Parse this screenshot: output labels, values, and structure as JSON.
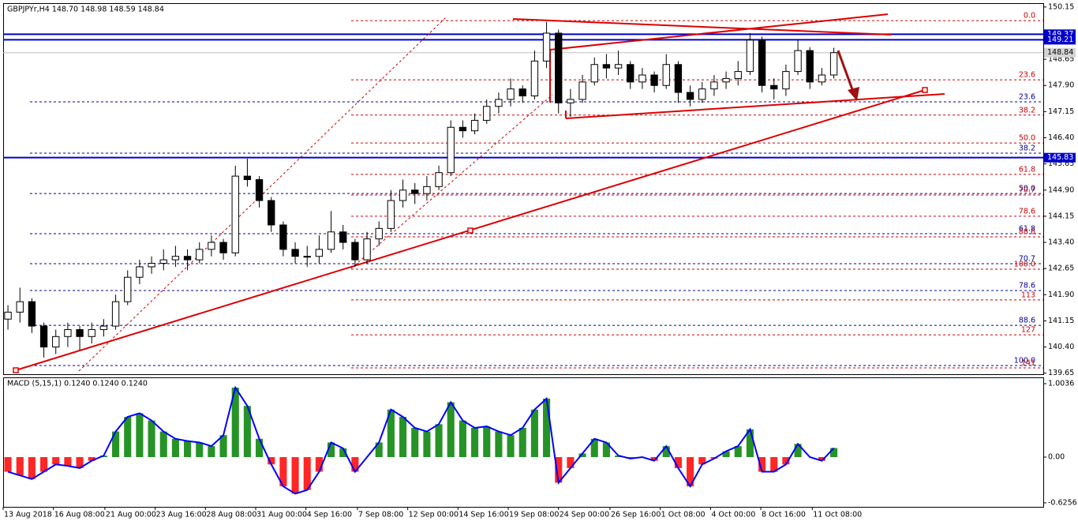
{
  "chart_data": {
    "type": "candlestick",
    "title": "GBPJPYr,H4  148.70 148.98 148.59 148.84",
    "up_color": "#ffffff",
    "down_color": "#000000",
    "candles": [
      [
        141.2,
        141.6,
        140.9,
        141.4
      ],
      [
        141.4,
        142.1,
        141.1,
        141.7
      ],
      [
        141.7,
        141.8,
        140.8,
        141.0
      ],
      [
        141.0,
        141.1,
        140.1,
        140.4
      ],
      [
        140.4,
        140.9,
        140.2,
        140.7
      ],
      [
        140.7,
        141.1,
        140.4,
        140.9
      ],
      [
        140.9,
        141.0,
        140.3,
        140.7
      ],
      [
        140.7,
        141.1,
        140.5,
        140.9
      ],
      [
        140.9,
        141.2,
        140.7,
        141.0
      ],
      [
        141.0,
        141.9,
        140.9,
        141.7
      ],
      [
        141.7,
        142.6,
        141.6,
        142.4
      ],
      [
        142.4,
        142.9,
        142.2,
        142.7
      ],
      [
        142.7,
        143.0,
        142.5,
        142.8
      ],
      [
        142.8,
        143.2,
        142.6,
        142.9
      ],
      [
        142.9,
        143.3,
        142.7,
        143.0
      ],
      [
        143.0,
        143.2,
        142.6,
        142.9
      ],
      [
        142.9,
        143.4,
        142.8,
        143.2
      ],
      [
        143.2,
        143.6,
        143.0,
        143.4
      ],
      [
        143.4,
        143.5,
        142.9,
        143.1
      ],
      [
        143.1,
        145.6,
        143.0,
        145.3
      ],
      [
        145.3,
        145.8,
        145.0,
        145.2
      ],
      [
        145.2,
        145.3,
        144.4,
        144.6
      ],
      [
        144.6,
        144.7,
        143.7,
        143.9
      ],
      [
        143.9,
        144.0,
        143.0,
        143.2
      ],
      [
        143.2,
        143.4,
        142.8,
        143.0
      ],
      [
        143.0,
        143.3,
        142.7,
        143.0
      ],
      [
        143.0,
        143.6,
        142.8,
        143.2
      ],
      [
        143.2,
        144.3,
        143.1,
        143.7
      ],
      [
        143.7,
        143.9,
        143.2,
        143.4
      ],
      [
        143.4,
        143.5,
        142.7,
        142.9
      ],
      [
        142.9,
        143.7,
        142.8,
        143.5
      ],
      [
        143.5,
        144.0,
        143.3,
        143.8
      ],
      [
        143.8,
        144.9,
        143.7,
        144.6
      ],
      [
        144.6,
        145.2,
        144.4,
        144.9
      ],
      [
        144.9,
        145.1,
        144.5,
        144.8
      ],
      [
        144.8,
        145.3,
        144.6,
        145.0
      ],
      [
        145.0,
        145.6,
        144.9,
        145.4
      ],
      [
        145.4,
        146.9,
        145.3,
        146.7
      ],
      [
        146.7,
        146.9,
        146.4,
        146.6
      ],
      [
        146.6,
        147.1,
        146.5,
        146.9
      ],
      [
        146.9,
        147.5,
        146.8,
        147.3
      ],
      [
        147.3,
        147.7,
        147.1,
        147.5
      ],
      [
        147.5,
        148.1,
        147.3,
        147.8
      ],
      [
        147.8,
        147.9,
        147.4,
        147.6
      ],
      [
        147.6,
        148.9,
        147.5,
        148.6
      ],
      [
        148.6,
        149.72,
        148.4,
        149.4
      ],
      [
        149.4,
        149.5,
        147.1,
        147.4
      ],
      [
        147.4,
        147.8,
        147.0,
        147.5
      ],
      [
        147.5,
        148.2,
        147.4,
        148.0
      ],
      [
        148.0,
        148.7,
        147.9,
        148.5
      ],
      [
        148.5,
        148.8,
        148.1,
        148.4
      ],
      [
        148.4,
        148.9,
        148.2,
        148.5
      ],
      [
        148.5,
        148.6,
        147.8,
        148.0
      ],
      [
        148.0,
        148.4,
        147.8,
        148.2
      ],
      [
        148.2,
        148.3,
        147.7,
        147.9
      ],
      [
        147.9,
        148.8,
        147.8,
        148.5
      ],
      [
        148.5,
        148.6,
        147.4,
        147.7
      ],
      [
        147.7,
        147.9,
        147.3,
        147.5
      ],
      [
        147.5,
        148.0,
        147.4,
        147.8
      ],
      [
        147.8,
        148.2,
        147.6,
        148.0
      ],
      [
        148.0,
        148.3,
        147.8,
        148.1
      ],
      [
        148.1,
        148.6,
        147.9,
        148.3
      ],
      [
        148.3,
        149.4,
        148.2,
        149.2
      ],
      [
        149.2,
        149.3,
        147.7,
        147.9
      ],
      [
        147.9,
        148.1,
        147.5,
        147.8
      ],
      [
        147.8,
        148.5,
        147.6,
        148.3
      ],
      [
        148.3,
        149.2,
        148.2,
        148.9
      ],
      [
        148.9,
        149.0,
        147.8,
        148.0
      ],
      [
        148.0,
        148.4,
        147.9,
        148.2
      ],
      [
        148.2,
        148.98,
        148.1,
        148.84
      ]
    ],
    "xlim": [
      -0.4,
      86.5
    ],
    "xticks": [
      {
        "value": -0.4,
        "label": "13 Aug 2018"
      },
      {
        "value": 3.8,
        "label": "16 Aug 08:00"
      },
      {
        "value": 8.1,
        "label": "21 Aug 00:00"
      },
      {
        "value": 12.3,
        "label": "23 Aug 16:00"
      },
      {
        "value": 16.5,
        "label": "28 Aug 08:00"
      },
      {
        "value": 20.7,
        "label": "31 Aug 00:00"
      },
      {
        "value": 24.9,
        "label": "4 Sep 16:00"
      },
      {
        "value": 29.2,
        "label": "7 Sep 08:00"
      },
      {
        "value": 33.4,
        "label": "12 Sep 00:00"
      },
      {
        "value": 37.6,
        "label": "14 Sep 16:00"
      },
      {
        "value": 41.8,
        "label": "19 Sep 08:00"
      },
      {
        "value": 46.0,
        "label": "24 Sep 00:00"
      },
      {
        "value": 50.3,
        "label": "26 Sep 16:00"
      },
      {
        "value": 54.5,
        "label": "1 Oct 08:00"
      },
      {
        "value": 58.7,
        "label": "4 Oct 00:00"
      },
      {
        "value": 62.9,
        "label": "8 Oct 16:00"
      },
      {
        "value": 67.2,
        "label": "11 Oct 08:00"
      }
    ],
    "ylim": [
      139.62,
      150.26
    ],
    "yticks": [
      150.15,
      {
        "value": 149.4,
        "label": "149.40"
      },
      148.65,
      {
        "value": 147.9,
        "label": "147.90"
      },
      147.15,
      {
        "value": 146.4,
        "label": "146.40"
      },
      145.65,
      {
        "value": 144.9,
        "label": "144.90"
      },
      144.15,
      {
        "value": 143.4,
        "label": "143.40"
      },
      142.65,
      {
        "value": 141.9,
        "label": "141.90"
      },
      141.15,
      {
        "value": 140.4,
        "label": "140.40"
      },
      139.65
    ],
    "hlines": [
      {
        "price": 149.37,
        "color": "#0000cc",
        "label_bg": "#0000cc",
        "label_fg": "#ffffff"
      },
      {
        "price": 149.21,
        "color": "#0000cc",
        "label_bg": "#0000cc",
        "label_fg": "#ffffff"
      },
      {
        "price": 148.84,
        "color": "#c0c0c0",
        "label_bg": "#d4d4d4",
        "label_fg": "#000000"
      },
      {
        "price": 145.83,
        "color": "#0000cc",
        "label_bg": "#0000cc",
        "label_fg": "#ffffff"
      }
    ],
    "fib_red": {
      "color": "#cc0000",
      "levels": [
        {
          "label": "0.0",
          "price": 149.76
        },
        {
          "label": "23.6",
          "price": 148.06
        },
        {
          "label": "38.2",
          "price": 147.05
        },
        {
          "label": "50.0",
          "price": 146.25
        },
        {
          "label": "61.8",
          "price": 145.35
        },
        {
          "label": "70.7",
          "price": 144.76
        },
        {
          "label": "78.6",
          "price": 144.15
        },
        {
          "label": "88.6",
          "price": 143.56
        },
        {
          "label": "100.0",
          "price": 142.63
        },
        {
          "label": "113",
          "price": 141.75
        },
        {
          "label": "127",
          "price": 140.75
        },
        {
          "label": "141",
          "price": 139.8
        }
      ]
    },
    "fib_blue": {
      "color": "#000099",
      "levels": [
        {
          "label": "23.6",
          "price": 147.43
        },
        {
          "label": "38.2",
          "price": 145.96
        },
        {
          "label": "50.0",
          "price": 144.8
        },
        {
          "label": "61.8",
          "price": 143.65
        },
        {
          "label": "70.7",
          "price": 142.79
        },
        {
          "label": "78.6",
          "price": 142.02
        },
        {
          "label": "88.6",
          "price": 141.02
        },
        {
          "label": "100.0",
          "price": 139.87
        }
      ]
    },
    "macd": {
      "title": "MACD (5,15,1) 0.1240 0.1240 0.1240",
      "pos_color": "#008000",
      "neg_color": "#ff0000",
      "line_color": "#0000ff",
      "ylim": [
        -0.68,
        1.09
      ],
      "yticks": [
        1.0036,
        {
          "value": 0,
          "label": "0.00"
        },
        -0.6256
      ],
      "values": [
        -0.2,
        -0.25,
        -0.3,
        -0.2,
        -0.1,
        -0.12,
        -0.15,
        -0.05,
        0.02,
        0.35,
        0.55,
        0.6,
        0.5,
        0.35,
        0.25,
        0.22,
        0.2,
        0.15,
        0.3,
        0.95,
        0.7,
        0.25,
        -0.1,
        -0.4,
        -0.5,
        -0.45,
        -0.2,
        0.2,
        0.12,
        -0.2,
        0.0,
        0.2,
        0.65,
        0.55,
        0.4,
        0.35,
        0.45,
        0.75,
        0.5,
        0.4,
        0.42,
        0.35,
        0.3,
        0.4,
        0.65,
        0.8,
        -0.35,
        -0.15,
        0.05,
        0.25,
        0.2,
        0.02,
        -0.02,
        0.0,
        -0.05,
        0.15,
        -0.15,
        -0.4,
        -0.1,
        -0.02,
        0.08,
        0.15,
        0.38,
        -0.2,
        -0.2,
        -0.1,
        0.18,
        0.0,
        -0.05,
        0.124
      ]
    }
  }
}
